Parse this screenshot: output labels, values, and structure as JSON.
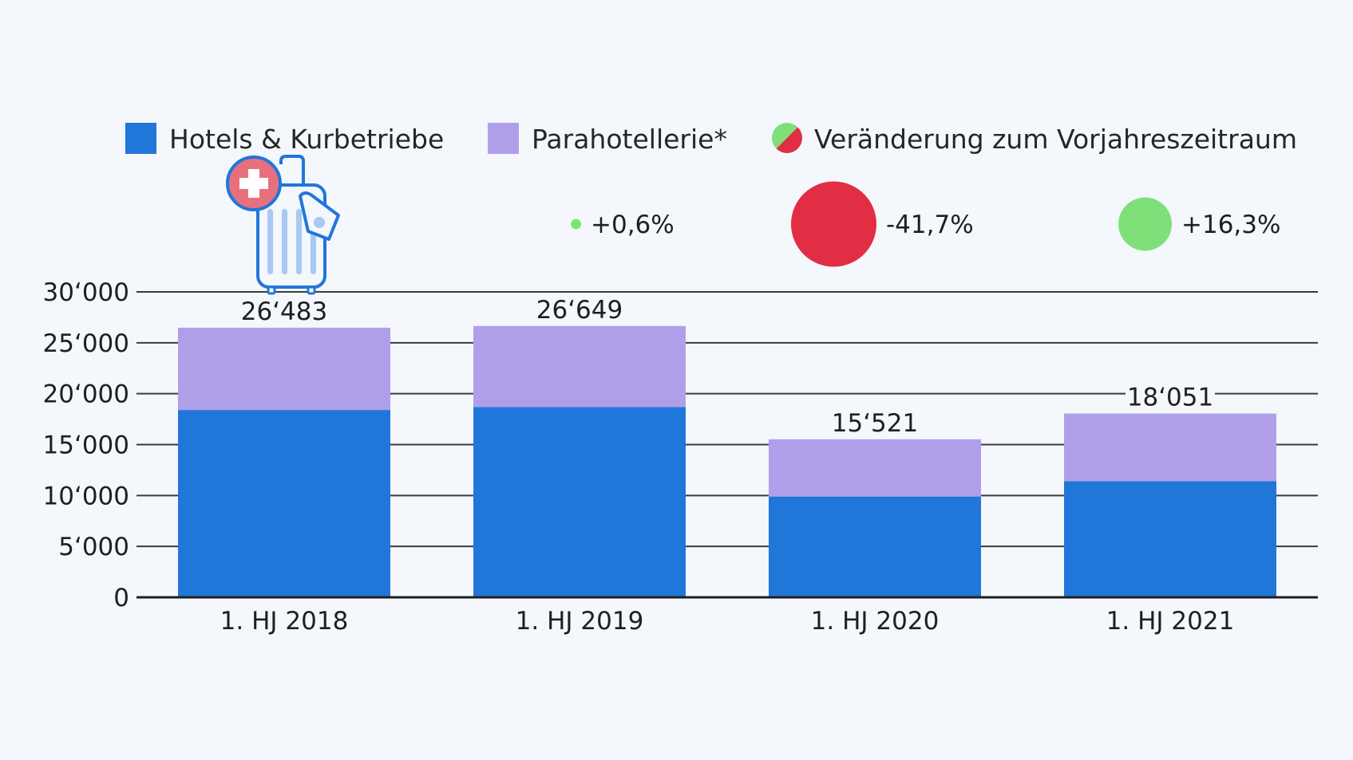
{
  "chart_data": {
    "type": "bar",
    "stacked": true,
    "categories": [
      "1. HJ 2018",
      "1. HJ 2019",
      "1. HJ 2020",
      "1. HJ 2021"
    ],
    "series": [
      {
        "name": "Hotels & Kurbetriebe",
        "color": "#2176d9",
        "values": [
          18400,
          18700,
          9900,
          11400
        ]
      },
      {
        "name": "Parahotellerie*",
        "color": "#b09fe8",
        "values": [
          8083,
          7949,
          5621,
          6651
        ]
      }
    ],
    "totals": [
      26483,
      26649,
      15521,
      18051
    ],
    "total_labels": [
      "26‘483",
      "26‘649",
      "15‘521",
      "18‘051"
    ],
    "ylim": [
      0,
      30000
    ],
    "yticks": [
      0,
      5000,
      10000,
      15000,
      20000,
      25000,
      30000
    ],
    "ytick_labels": [
      "0",
      "5‘000",
      "10‘000",
      "15‘000",
      "20‘000",
      "25‘000",
      "30‘000"
    ],
    "grid": true,
    "legend_placement": "top",
    "change_legend": "Veränderung zum Vorjahreszeitraum",
    "change_colors": {
      "positive": "#7fe07a",
      "negative": "#e12e44"
    },
    "changes": [
      {
        "category": "1. HJ 2019",
        "value": 0.6,
        "label": "+0,6%"
      },
      {
        "category": "1. HJ 2020",
        "value": -41.7,
        "label": "-41,7%"
      },
      {
        "category": "1. HJ 2021",
        "value": 16.3,
        "label": "+16,3%"
      }
    ]
  },
  "decoration": {
    "icon": "swiss-suitcase-icon"
  }
}
